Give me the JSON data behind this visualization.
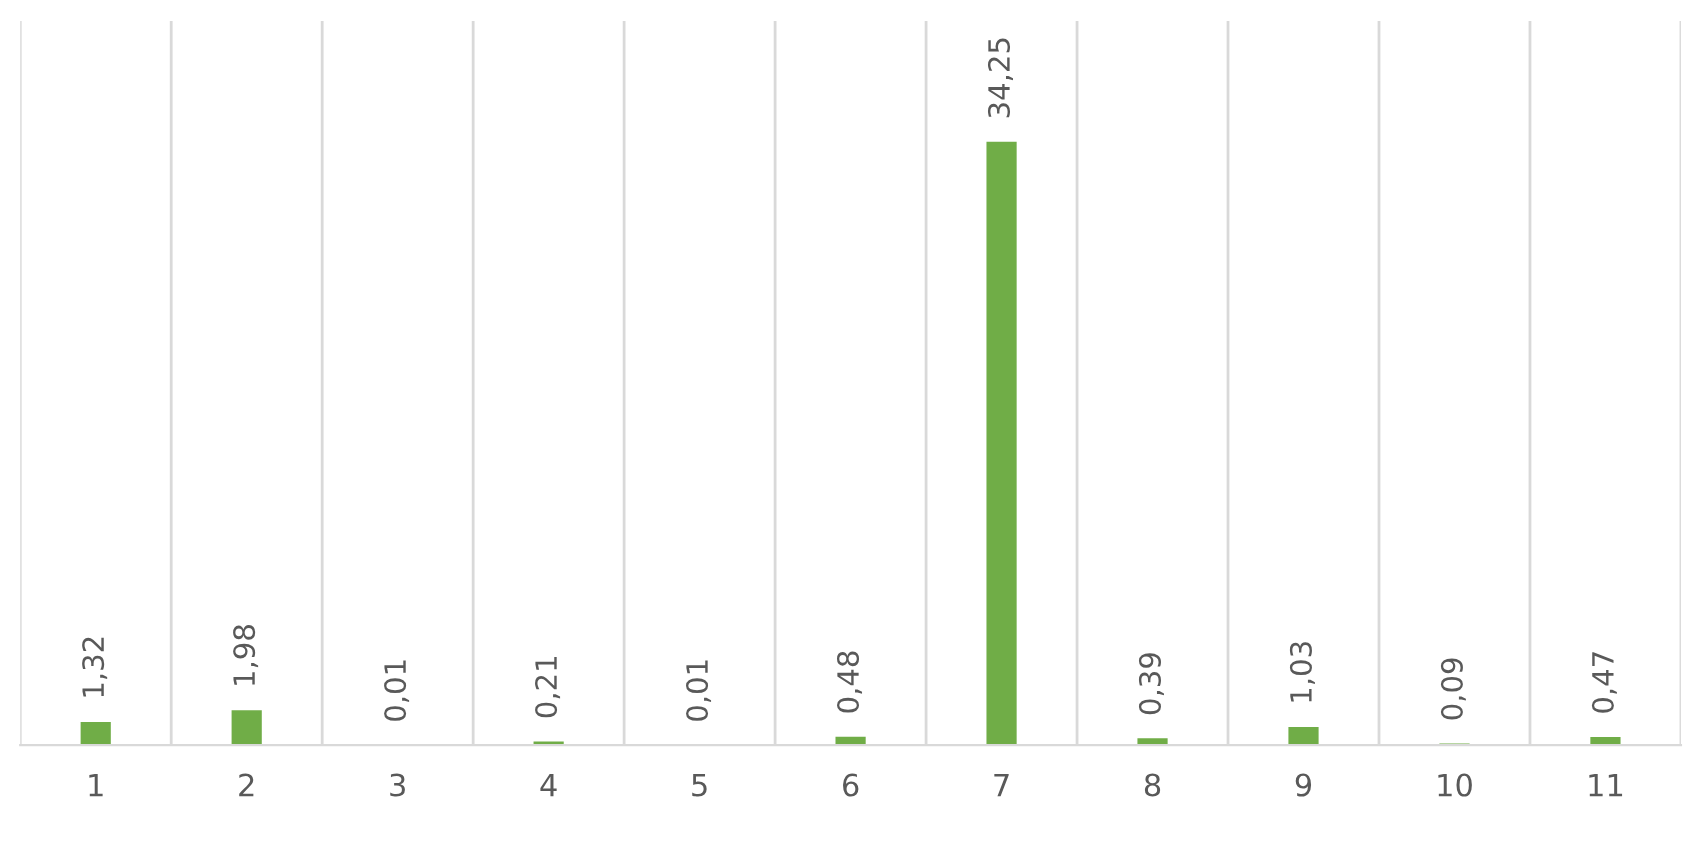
{
  "chart_data": {
    "type": "bar",
    "categories": [
      "1",
      "2",
      "3",
      "4",
      "5",
      "6",
      "7",
      "8",
      "9",
      "10",
      "11"
    ],
    "values": [
      1.32,
      1.98,
      0.01,
      0.21,
      0.01,
      0.48,
      34.25,
      0.39,
      1.03,
      0.09,
      0.47
    ],
    "value_labels": [
      "1,32",
      "1,98",
      "0,01",
      "0,21",
      "0,01",
      "0,48",
      "34,25",
      "0,39",
      "1,03",
      "0,09",
      "0,47"
    ],
    "color": "#70ad47",
    "grid": "x",
    "legend": false
  }
}
